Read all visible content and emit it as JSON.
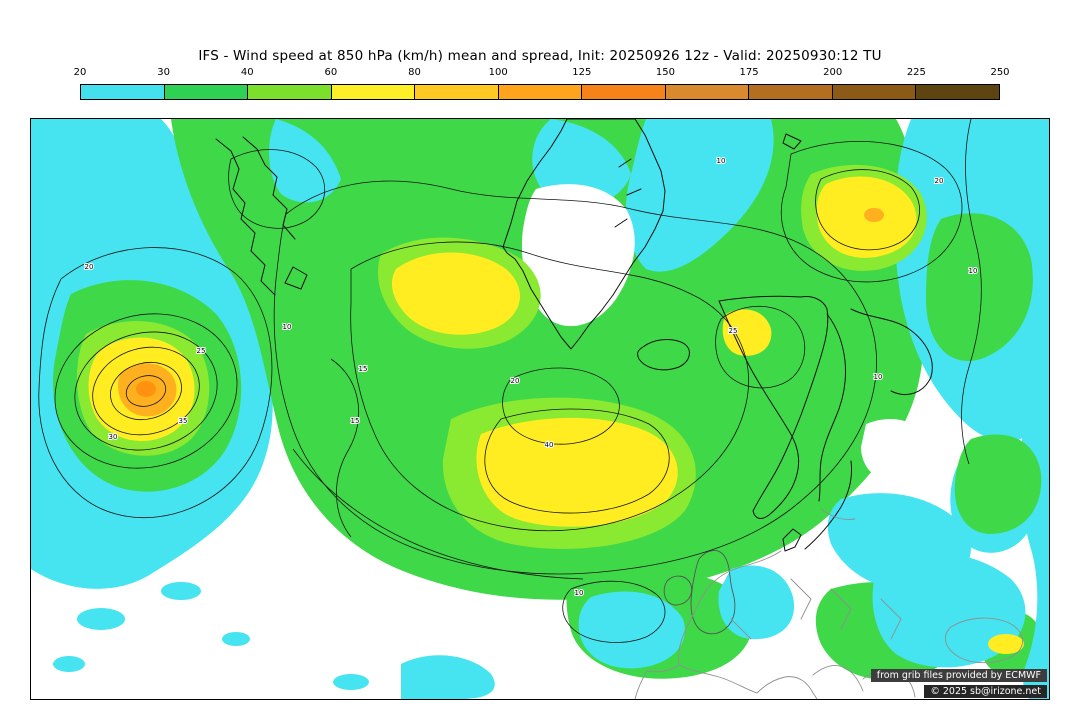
{
  "header": {
    "title": "IFS - Wind speed at 850 hPa (km/h) mean and spread, Init: 20250926 12z - Valid: 20250930:12 TU"
  },
  "colorbar": {
    "tick_labels": [
      "20",
      "30",
      "40",
      "60",
      "80",
      "100",
      "125",
      "150",
      "175",
      "200",
      "225",
      "250"
    ],
    "segment_colors": [
      "#45e0ee",
      "#2fd155",
      "#7bdf2b",
      "#ffef28",
      "#ffc822",
      "#ffa41c",
      "#f5831a",
      "#d98a2e",
      "#b26f1f",
      "#8a5a16",
      "#5e4410"
    ]
  },
  "map": {
    "field_colors": {
      "cyan": "#45e4f0",
      "green": "#3fd848",
      "light_green": "#8ae931",
      "yellow": "#ffed22",
      "orange": "#ffb01e",
      "deep_orange": "#ff9210"
    },
    "contour_labels": [
      "20",
      "25",
      "30",
      "35",
      "10",
      "15",
      "20",
      "10",
      "20",
      "10",
      "25",
      "10",
      "15",
      "10",
      "40"
    ]
  },
  "credits": {
    "line1": "from grib files provided by ECMWF",
    "line2": "© 2025 sb@irizone.net"
  }
}
